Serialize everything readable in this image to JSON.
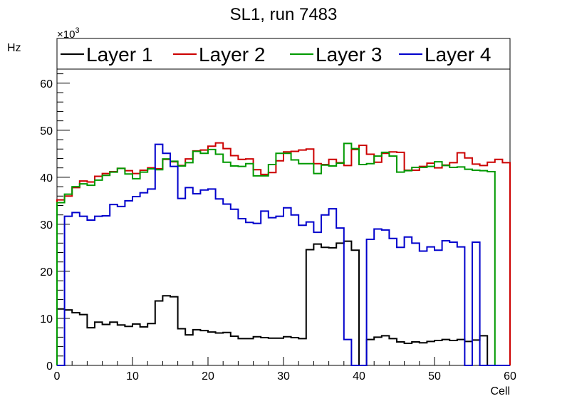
{
  "chart_data": {
    "type": "line",
    "title": "SL1, run 7483",
    "xlabel": "Cell",
    "ylabel": "Hz",
    "yexponent_label": "×10",
    "yexponent_power": "3",
    "xlim": [
      0,
      60
    ],
    "ylim": [
      0,
      63
    ],
    "xticks": [
      0,
      10,
      20,
      30,
      40,
      50,
      60
    ],
    "yticks": [
      0,
      10,
      20,
      30,
      40,
      50,
      60
    ],
    "grid": false,
    "legend_position": "top",
    "x": [
      0,
      1,
      2,
      3,
      4,
      5,
      6,
      7,
      8,
      9,
      10,
      11,
      12,
      13,
      14,
      15,
      16,
      17,
      18,
      19,
      20,
      21,
      22,
      23,
      24,
      25,
      26,
      27,
      28,
      29,
      30,
      31,
      32,
      33,
      34,
      35,
      36,
      37,
      38,
      39,
      40,
      41,
      42,
      43,
      44,
      45,
      46,
      47,
      48,
      49,
      50,
      51,
      52,
      53,
      54,
      55,
      56,
      57,
      58,
      59
    ],
    "series": [
      {
        "name": "Layer 1",
        "color": "#000000",
        "values": [
          12,
          11.8,
          11.2,
          10.8,
          8,
          9.2,
          8.7,
          9.2,
          8.6,
          8.3,
          8.8,
          8.2,
          8.9,
          13.7,
          14.8,
          14.6,
          7.8,
          6.5,
          7.6,
          7.4,
          7.1,
          6.9,
          7,
          6.2,
          5.7,
          5.7,
          6.1,
          5.9,
          5.8,
          5.8,
          6.1,
          5.9,
          5.7,
          24.6,
          25.8,
          25.1,
          25,
          26,
          26.4,
          24.5,
          0,
          5.5,
          6,
          6.3,
          5.7,
          5,
          4.7,
          5,
          4.8,
          5.1,
          5.3,
          5.5,
          5.3,
          5.5,
          5.1,
          5.4,
          6.3,
          0,
          0,
          0
        ]
      },
      {
        "name": "Layer 2",
        "color": "#cc0000",
        "values": [
          35.2,
          36,
          37.8,
          39.2,
          39,
          40.2,
          40.8,
          41.2,
          41.9,
          41.4,
          40.8,
          41.5,
          42,
          41.8,
          43.8,
          43.3,
          42.5,
          43.9,
          45.6,
          45.8,
          46.6,
          47.3,
          46.1,
          44.6,
          43.8,
          43.9,
          41.6,
          40.6,
          41,
          43.5,
          45.4,
          45.5,
          45.8,
          46,
          42.9,
          42.7,
          43.8,
          43.1,
          42.5,
          45.9,
          46.8,
          44.9,
          43.2,
          45.1,
          45.4,
          45.3,
          41.5,
          41.5,
          42.3,
          43,
          42,
          42.6,
          43.1,
          45.2,
          44.1,
          42.8,
          42.5,
          43.2,
          43.8,
          43.1
        ]
      },
      {
        "name": "Layer 3",
        "color": "#009900",
        "values": [
          34.6,
          36.4,
          38,
          38.6,
          38.3,
          39.4,
          40.4,
          41.1,
          41.9,
          40.7,
          39.7,
          41.1,
          41.8,
          41.6,
          43.9,
          43.4,
          42.4,
          43.1,
          45.5,
          45.1,
          45.9,
          44.9,
          43.2,
          42.4,
          42.3,
          42.9,
          40.3,
          40.3,
          42.7,
          45.1,
          45.1,
          43.7,
          42.9,
          42.9,
          40.8,
          42.6,
          42.4,
          43,
          47.2,
          46.1,
          42.7,
          42.9,
          44.5,
          45.3,
          44.5,
          41.1,
          41.4,
          42.1,
          42.1,
          42.3,
          43.3,
          42.5,
          42.1,
          42.2,
          41.7,
          41.5,
          41.4,
          41.2,
          0,
          0
        ]
      },
      {
        "name": "Layer 4",
        "color": "#0000cc",
        "values": [
          0,
          31.7,
          32.5,
          31.7,
          30.9,
          31.7,
          31.8,
          34.2,
          33.8,
          35,
          35.9,
          36.7,
          37.5,
          47,
          45.1,
          42.3,
          35.5,
          37.8,
          36.5,
          37.3,
          37.5,
          35.4,
          34.3,
          33.2,
          31.2,
          30.4,
          30.2,
          32.8,
          31.4,
          31.7,
          33.5,
          32,
          29.8,
          30.5,
          28.3,
          32,
          33.3,
          29.2,
          5.5,
          0,
          0,
          26.8,
          29,
          28.8,
          27,
          25.1,
          27.3,
          26,
          24.3,
          25.2,
          24.5,
          26.5,
          26.2,
          25.2,
          0,
          26.2,
          0,
          0,
          0,
          0
        ]
      }
    ]
  }
}
